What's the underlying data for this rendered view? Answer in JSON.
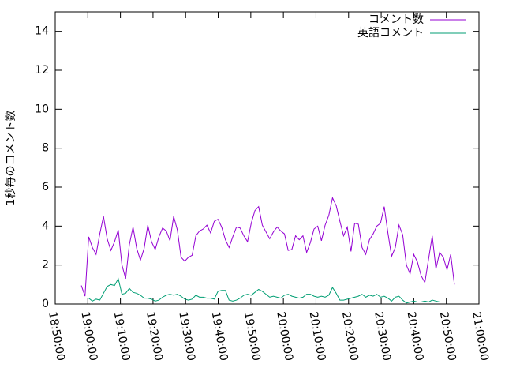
{
  "chart_data": {
    "type": "line",
    "ylabel": "1秒毎のコメント数",
    "x": [
      "18:58:00",
      "18:59:08",
      "19:00:16",
      "19:01:24",
      "19:02:32",
      "19:03:40",
      "19:04:48",
      "19:05:56",
      "19:07:04",
      "19:08:12",
      "19:09:20",
      "19:10:28",
      "19:11:36",
      "19:12:44",
      "19:13:52",
      "19:15:00",
      "19:16:08",
      "19:17:16",
      "19:18:24",
      "19:19:32",
      "19:20:40",
      "19:21:48",
      "19:22:56",
      "19:24:04",
      "19:25:12",
      "19:26:20",
      "19:27:28",
      "19:28:36",
      "19:29:44",
      "19:30:52",
      "19:32:00",
      "19:33:08",
      "19:34:16",
      "19:35:24",
      "19:36:32",
      "19:37:40",
      "19:38:48",
      "19:39:56",
      "19:41:04",
      "19:42:12",
      "19:43:20",
      "19:44:28",
      "19:45:36",
      "19:46:44",
      "19:47:52",
      "19:49:00",
      "19:50:08",
      "19:51:16",
      "19:52:24",
      "19:53:32",
      "19:54:40",
      "19:55:48",
      "19:56:56",
      "19:58:04",
      "19:59:12",
      "20:00:20",
      "20:01:28",
      "20:02:36",
      "20:03:44",
      "20:04:52",
      "20:06:00",
      "20:07:08",
      "20:08:16",
      "20:09:24",
      "20:10:32",
      "20:11:40",
      "20:12:48",
      "20:13:56",
      "20:15:04",
      "20:16:12",
      "20:17:20",
      "20:18:28",
      "20:19:36",
      "20:20:44",
      "20:21:52",
      "20:23:00",
      "20:24:08",
      "20:25:16",
      "20:26:24",
      "20:27:32",
      "20:28:40",
      "20:29:48",
      "20:30:56",
      "20:32:04",
      "20:33:12",
      "20:34:20",
      "20:35:28",
      "20:36:36",
      "20:37:44",
      "20:38:52",
      "20:40:00",
      "20:41:08",
      "20:42:16",
      "20:43:24",
      "20:44:32",
      "20:45:40",
      "20:46:48",
      "20:47:56",
      "20:49:04",
      "20:50:12",
      "20:51:20",
      "20:52:28"
    ],
    "series": [
      {
        "name": "コメント数",
        "color": "#9400d3",
        "values": [
          0.95,
          0.4,
          3.45,
          2.9,
          2.55,
          3.6,
          4.5,
          3.35,
          2.75,
          3.2,
          3.8,
          2.0,
          1.3,
          3.05,
          3.95,
          2.85,
          2.25,
          2.85,
          4.05,
          3.2,
          2.8,
          3.45,
          3.9,
          3.75,
          3.25,
          4.5,
          3.8,
          2.4,
          2.2,
          2.4,
          2.5,
          3.5,
          3.75,
          3.85,
          4.05,
          3.65,
          4.25,
          4.35,
          3.95,
          3.3,
          2.9,
          3.45,
          3.95,
          3.9,
          3.5,
          3.2,
          4.15,
          4.8,
          5.0,
          4.05,
          3.7,
          3.35,
          3.7,
          3.95,
          3.75,
          3.6,
          2.75,
          2.8,
          3.5,
          3.3,
          3.5,
          2.65,
          3.15,
          3.85,
          4.0,
          3.25,
          4.05,
          4.55,
          5.45,
          5.05,
          4.25,
          3.5,
          3.95,
          2.7,
          4.15,
          4.1,
          2.9,
          2.55,
          3.3,
          3.6,
          4.0,
          4.15,
          5.0,
          3.65,
          2.45,
          2.9,
          4.05,
          3.55,
          2.0,
          1.55,
          2.55,
          2.15,
          1.45,
          1.1,
          2.3,
          3.5,
          1.8,
          2.65,
          2.4,
          1.75,
          2.55,
          1.0
        ]
      },
      {
        "name": "英語コメント",
        "color": "#009e73",
        "values": [
          null,
          null,
          0.3,
          0.15,
          0.25,
          0.2,
          0.55,
          0.9,
          1.0,
          0.95,
          1.3,
          0.5,
          0.55,
          0.8,
          0.6,
          0.55,
          0.45,
          0.3,
          0.3,
          0.25,
          0.15,
          0.2,
          0.35,
          0.45,
          0.5,
          0.45,
          0.5,
          0.4,
          0.25,
          0.2,
          0.25,
          0.45,
          0.35,
          0.35,
          0.3,
          0.3,
          0.25,
          0.65,
          0.7,
          0.7,
          0.2,
          0.15,
          0.2,
          0.3,
          0.45,
          0.5,
          0.45,
          0.6,
          0.75,
          0.65,
          0.5,
          0.35,
          0.4,
          0.35,
          0.3,
          0.45,
          0.5,
          0.4,
          0.35,
          0.3,
          0.35,
          0.5,
          0.5,
          0.4,
          0.35,
          0.4,
          0.35,
          0.45,
          0.85,
          0.55,
          0.2,
          0.2,
          0.25,
          0.3,
          0.35,
          0.4,
          0.5,
          0.35,
          0.45,
          0.4,
          0.5,
          0.35,
          0.4,
          0.3,
          0.15,
          0.35,
          0.4,
          0.2,
          0.05,
          0.1,
          0.15,
          0.1,
          0.1,
          0.15,
          0.1,
          0.2,
          0.15,
          0.1,
          0.1,
          0.1,
          null,
          null
        ]
      }
    ],
    "xlim": [
      "18:50:00",
      "21:00:00"
    ],
    "xticks": [
      "18:50:00",
      "19:00:00",
      "19:10:00",
      "19:20:00",
      "19:30:00",
      "19:40:00",
      "19:50:00",
      "20:00:00",
      "20:10:00",
      "20:20:00",
      "20:30:00",
      "20:40:00",
      "20:50:00",
      "21:00:00"
    ],
    "ylim": [
      0,
      15
    ],
    "yticks": [
      0,
      2,
      4,
      6,
      8,
      10,
      12,
      14
    ],
    "legend": "top right",
    "grid": false
  }
}
